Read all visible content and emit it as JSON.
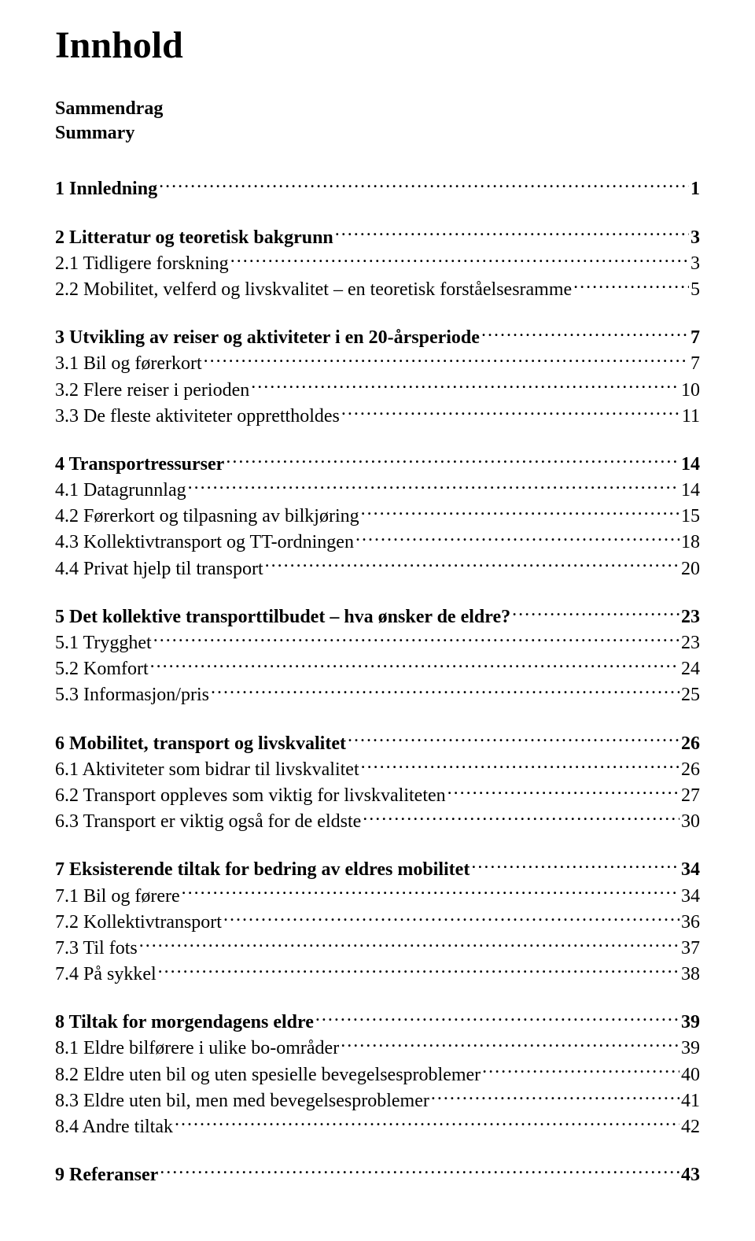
{
  "title": "Innhold",
  "frontMatter": [
    "Sammendrag",
    "Summary"
  ],
  "sections": [
    {
      "heading": {
        "label": "1 Innledning",
        "page": "1"
      },
      "items": []
    },
    {
      "heading": {
        "label": "2 Litteratur og teoretisk bakgrunn",
        "page": "3"
      },
      "items": [
        {
          "label": "2.1 Tidligere forskning",
          "page": "3"
        },
        {
          "label": "2.2 Mobilitet, velferd og livskvalitet – en teoretisk forståelsesramme",
          "page": "5"
        }
      ]
    },
    {
      "heading": {
        "label": "3 Utvikling av reiser og aktiviteter i en 20-årsperiode",
        "page": "7"
      },
      "items": [
        {
          "label": "3.1 Bil og førerkort",
          "page": "7"
        },
        {
          "label": "3.2 Flere reiser i perioden",
          "page": "10"
        },
        {
          "label": "3.3 De fleste aktiviteter opprettholdes",
          "page": "11"
        }
      ]
    },
    {
      "heading": {
        "label": "4 Transportressurser",
        "page": "14"
      },
      "items": [
        {
          "label": "4.1 Datagrunnlag",
          "page": "14"
        },
        {
          "label": "4.2 Førerkort og tilpasning av bilkjøring",
          "page": "15"
        },
        {
          "label": "4.3 Kollektivtransport og TT-ordningen",
          "page": "18"
        },
        {
          "label": "4.4 Privat hjelp til transport",
          "page": "20"
        }
      ]
    },
    {
      "heading": {
        "label": "5 Det kollektive transporttilbudet – hva ønsker de eldre?",
        "page": "23"
      },
      "items": [
        {
          "label": "5.1 Trygghet",
          "page": "23"
        },
        {
          "label": "5.2 Komfort",
          "page": "24"
        },
        {
          "label": "5.3 Informasjon/pris",
          "page": "25"
        }
      ]
    },
    {
      "heading": {
        "label": "6 Mobilitet, transport og livskvalitet",
        "page": "26"
      },
      "items": [
        {
          "label": "6.1 Aktiviteter som bidrar til livskvalitet",
          "page": "26"
        },
        {
          "label": "6.2 Transport oppleves som viktig for livskvaliteten",
          "page": "27"
        },
        {
          "label": "6.3 Transport er viktig også for de eldste",
          "page": "30"
        }
      ]
    },
    {
      "heading": {
        "label": "7 Eksisterende tiltak for bedring av eldres mobilitet",
        "page": "34"
      },
      "items": [
        {
          "label": "7.1 Bil og førere",
          "page": "34"
        },
        {
          "label": "7.2 Kollektivtransport",
          "page": "36"
        },
        {
          "label": "7.3 Til fots",
          "page": "37"
        },
        {
          "label": "7.4 På sykkel",
          "page": "38"
        }
      ]
    },
    {
      "heading": {
        "label": "8 Tiltak for morgendagens eldre",
        "page": "39"
      },
      "items": [
        {
          "label": "8.1 Eldre bilførere i ulike bo-områder",
          "page": "39"
        },
        {
          "label": "8.2 Eldre uten bil og uten spesielle bevegelsesproblemer",
          "page": "40"
        },
        {
          "label": "8.3 Eldre uten bil, men med bevegelsesproblemer",
          "page": "41"
        },
        {
          "label": "8.4 Andre tiltak",
          "page": "42"
        }
      ]
    },
    {
      "heading": {
        "label": "9 Referanser",
        "page": "43"
      },
      "items": []
    }
  ]
}
